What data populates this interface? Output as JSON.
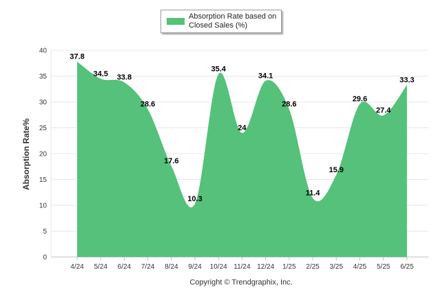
{
  "chart_data": {
    "type": "area",
    "legend": "Absorption Rate based on Closed Sales (%)",
    "legend_placement": "top-center",
    "ylabel": "Absorption Rate%",
    "xlabel": "",
    "ylim": [
      0,
      40
    ],
    "yticks": [
      0,
      5,
      10,
      15,
      20,
      25,
      30,
      35,
      40
    ],
    "grid": true,
    "color": "#55c17a",
    "categories": [
      "4/24",
      "5/24",
      "6/24",
      "7/24",
      "8/24",
      "9/24",
      "10/24",
      "11/24",
      "12/24",
      "1/25",
      "2/25",
      "3/25",
      "4/25",
      "5/25",
      "6/25"
    ],
    "values": [
      37.8,
      34.5,
      33.8,
      28.6,
      17.6,
      10.3,
      35.4,
      24,
      34.1,
      28.6,
      11.4,
      15.9,
      29.6,
      27.4,
      33.3
    ],
    "value_labels": [
      "37.8",
      "34.5",
      "33.8",
      "28.6",
      "17.6",
      "10.3",
      "35.4",
      "24",
      "34.1",
      "28.6",
      "11.4",
      "15.9",
      "29.6",
      "27.4",
      "33.3"
    ],
    "caption": "Copyright © Trendgraphix, Inc."
  }
}
